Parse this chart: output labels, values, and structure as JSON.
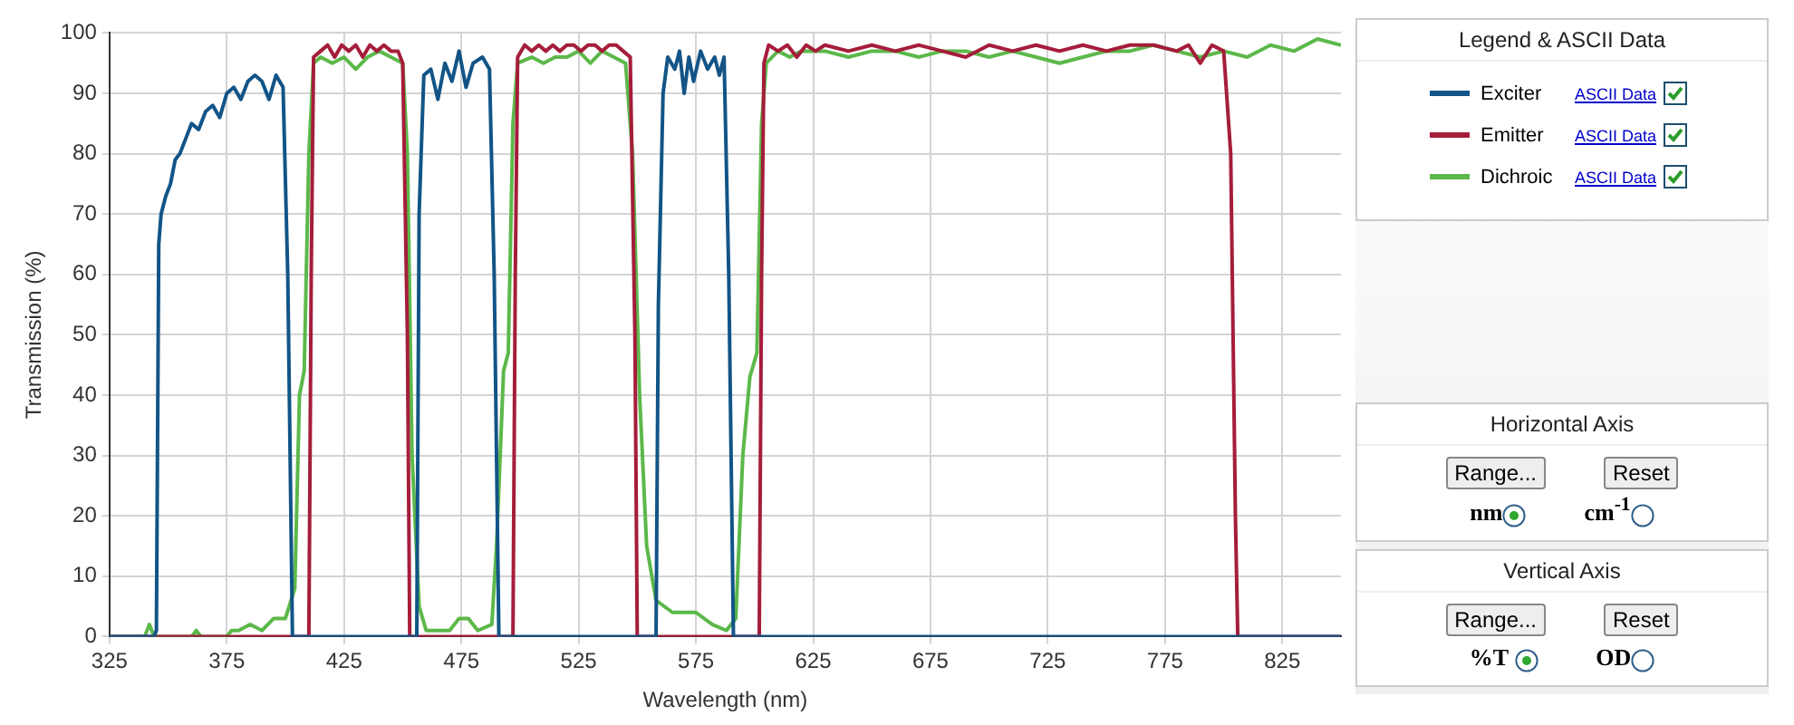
{
  "chart_data": {
    "type": "line",
    "xlabel": "Wavelength (nm)",
    "ylabel": "Transmission (%)",
    "xlim": [
      325,
      850
    ],
    "xticks": [
      325,
      375,
      425,
      475,
      525,
      575,
      625,
      675,
      725,
      775,
      825
    ],
    "ylim": [
      0,
      100
    ],
    "yticks": [
      0,
      10,
      20,
      30,
      40,
      50,
      60,
      70,
      80,
      90,
      100
    ],
    "grid": true,
    "legend": "right",
    "marker": "none",
    "line_style": "solid",
    "legend_title": "Legend & ASCII Data",
    "annotations": [
      "ASCII Data",
      "Horizontal  Axis",
      "Range...",
      "Reset",
      "nm",
      "cm$^{-1}$",
      "Vertical  Axis",
      "Range...",
      "Reset",
      "%T",
      "OD"
    ],
    "series": [
      {
        "name": "Exciter",
        "color": "#125487",
        "x": [
          325,
          344,
          345,
          346,
          347,
          349,
          351,
          353,
          355,
          358,
          360,
          363,
          366,
          369,
          372,
          375,
          378,
          381,
          384,
          387,
          390,
          393,
          396,
          399,
          401,
          403,
          456,
          457,
          459,
          462,
          465,
          468,
          471,
          474,
          477,
          480,
          484,
          487,
          489,
          491,
          558,
          559,
          561,
          563,
          566,
          568,
          570,
          572,
          574,
          577,
          580,
          583,
          585,
          587,
          589,
          591,
          850
        ],
        "values": [
          0,
          0,
          1,
          65,
          70,
          73,
          75,
          79,
          80,
          83,
          85,
          84,
          87,
          88,
          86,
          90,
          91,
          89,
          92,
          93,
          92,
          89,
          93,
          91,
          60,
          0,
          0,
          70,
          93,
          94,
          89,
          95,
          92,
          97,
          91,
          95,
          96,
          94,
          60,
          0,
          0,
          55,
          90,
          96,
          94,
          97,
          90,
          96,
          92,
          97,
          94,
          96,
          93,
          96,
          60,
          0,
          0
        ]
      },
      {
        "name": "Emitter",
        "color": "#a51d3a",
        "x": [
          325,
          410,
          411,
          412,
          415,
          418,
          421,
          424,
          427,
          430,
          433,
          436,
          439,
          442,
          445,
          448,
          450,
          452,
          453,
          497,
          498,
          499,
          502,
          505,
          508,
          511,
          514,
          517,
          520,
          523,
          526,
          529,
          532,
          535,
          538,
          541,
          544,
          547,
          549,
          550,
          602,
          603,
          604,
          606,
          610,
          614,
          618,
          622,
          626,
          630,
          640,
          650,
          660,
          670,
          680,
          690,
          700,
          710,
          720,
          730,
          740,
          750,
          760,
          770,
          780,
          785,
          790,
          795,
          800,
          803,
          805,
          806,
          850
        ],
        "values": [
          0,
          0,
          60,
          96,
          97,
          98,
          96,
          98,
          97,
          98,
          96,
          98,
          97,
          98,
          97,
          97,
          95,
          50,
          0,
          0,
          60,
          96,
          98,
          97,
          98,
          97,
          98,
          97,
          98,
          98,
          97,
          98,
          98,
          97,
          98,
          98,
          97,
          96,
          50,
          0,
          0,
          60,
          95,
          98,
          97,
          98,
          96,
          98,
          97,
          98,
          97,
          98,
          97,
          98,
          97,
          96,
          98,
          97,
          98,
          97,
          98,
          97,
          98,
          98,
          97,
          98,
          95,
          98,
          97,
          80,
          20,
          0,
          0
        ]
      },
      {
        "name": "Dichroic",
        "color": "#5cb84a",
        "x": [
          325,
          340,
          342,
          344,
          360,
          362,
          364,
          375,
          377,
          380,
          385,
          390,
          395,
          400,
          404,
          406,
          408,
          410,
          412,
          415,
          420,
          425,
          430,
          435,
          440,
          445,
          450,
          452,
          454,
          457,
          460,
          470,
          474,
          478,
          482,
          488,
          490,
          493,
          495,
          497,
          499,
          505,
          510,
          515,
          520,
          525,
          530,
          535,
          540,
          545,
          548,
          551,
          554,
          558,
          565,
          575,
          582,
          588,
          592,
          595,
          598,
          601,
          603,
          605,
          610,
          615,
          620,
          630,
          640,
          650,
          660,
          670,
          680,
          690,
          700,
          710,
          720,
          730,
          740,
          750,
          760,
          770,
          780,
          790,
          800,
          810,
          820,
          830,
          840,
          850
        ],
        "values": [
          0,
          0,
          2,
          0,
          0,
          1,
          0,
          0,
          1,
          1,
          2,
          1,
          3,
          3,
          8,
          40,
          44,
          80,
          95,
          96,
          95,
          96,
          94,
          96,
          97,
          96,
          95,
          80,
          30,
          5,
          1,
          1,
          3,
          3,
          1,
          2,
          15,
          44,
          47,
          85,
          95,
          96,
          95,
          96,
          96,
          97,
          95,
          97,
          96,
          95,
          80,
          40,
          15,
          6,
          4,
          4,
          2,
          1,
          3,
          30,
          43,
          47,
          85,
          95,
          97,
          96,
          97,
          97,
          96,
          97,
          97,
          96,
          97,
          97,
          96,
          97,
          96,
          95,
          96,
          97,
          97,
          98,
          97,
          96,
          97,
          96,
          98,
          97,
          99,
          98
        ]
      }
    ]
  }
}
